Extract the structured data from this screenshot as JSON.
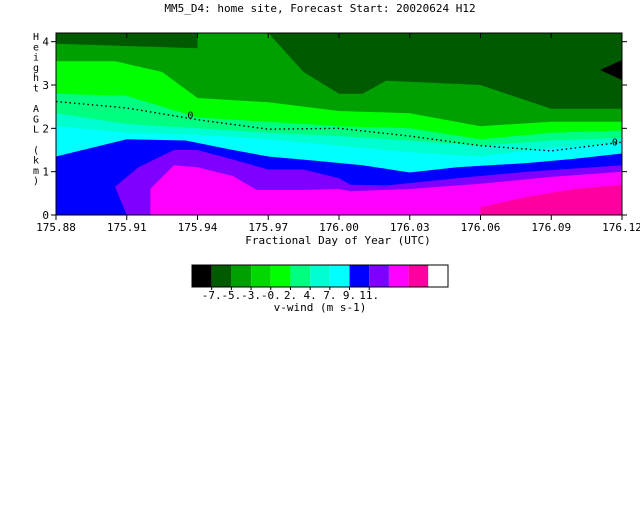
{
  "chart_data": {
    "type": "heatmap",
    "title": "MM5_D4: home site,  Forecast Start: 20020624 H12",
    "xlabel": "Fractional Day of Year (UTC)",
    "ylabel": "Height AGL (km)",
    "x_ticks": [
      "175.88",
      "175.91",
      "175.94",
      "175.97",
      "176.00",
      "176.03",
      "176.06",
      "176.09",
      "176.12"
    ],
    "x_range": [
      175.88,
      176.12
    ],
    "y_ticks": [
      "0",
      "1",
      "2",
      "3",
      "4"
    ],
    "y_range": [
      0,
      4.2
    ],
    "contour_label": "0",
    "colorbar": {
      "label": "v-wind (m s-1)",
      "ticks": [
        "-7.",
        "-5.",
        "-3.",
        "-0.",
        "2.",
        "4.",
        "7.",
        "9.",
        "11."
      ],
      "colors": [
        "#000000",
        "#005a00",
        "#00a000",
        "#00d800",
        "#00ff00",
        "#00ff80",
        "#00ffd0",
        "#00ffff",
        "#0000ff",
        "#8000ff",
        "#ff00ff",
        "#ff00a0",
        "#ffffff"
      ]
    },
    "regions": [
      {
        "color": "#005a00",
        "level_ms": -6,
        "boundary": [
          [
            175.88,
            0
          ],
          [
            176.12,
            0
          ],
          [
            176.12,
            4.2
          ],
          [
            175.88,
            4.2
          ]
        ]
      },
      {
        "color": "#00a000",
        "level_ms": -4,
        "boundary": [
          [
            175.88,
            0
          ],
          [
            176.12,
            0
          ],
          [
            176.12,
            2.45
          ],
          [
            176.09,
            2.45
          ],
          [
            176.06,
            3.0
          ],
          [
            176.02,
            3.1
          ],
          [
            176.01,
            2.8
          ],
          [
            176.0,
            2.8
          ],
          [
            175.985,
            3.3
          ],
          [
            175.97,
            4.2
          ],
          [
            175.94,
            4.2
          ],
          [
            175.94,
            3.85
          ],
          [
            175.91,
            3.9
          ],
          [
            175.88,
            3.95
          ]
        ]
      },
      {
        "color": "#00ff00",
        "level_ms": -2,
        "boundary": [
          [
            175.88,
            0
          ],
          [
            176.12,
            0
          ],
          [
            176.12,
            2.15
          ],
          [
            176.09,
            2.15
          ],
          [
            176.06,
            2.05
          ],
          [
            176.03,
            2.35
          ],
          [
            176.0,
            2.4
          ],
          [
            175.97,
            2.6
          ],
          [
            175.94,
            2.7
          ],
          [
            175.925,
            3.3
          ],
          [
            175.905,
            3.55
          ],
          [
            175.88,
            3.55
          ]
        ]
      },
      {
        "color": "#00ff80",
        "level_ms": 0,
        "boundary": [
          [
            175.88,
            0
          ],
          [
            176.12,
            0
          ],
          [
            176.12,
            1.95
          ],
          [
            176.09,
            1.9
          ],
          [
            176.06,
            1.75
          ],
          [
            176.03,
            2.0
          ],
          [
            176.0,
            2.05
          ],
          [
            175.97,
            2.15
          ],
          [
            175.94,
            2.25
          ],
          [
            175.91,
            2.75
          ],
          [
            175.88,
            2.8
          ]
        ]
      },
      {
        "color": "#00ffd0",
        "level_ms": 1,
        "boundary": [
          [
            175.88,
            0
          ],
          [
            176.12,
            0
          ],
          [
            176.12,
            1.78
          ],
          [
            176.09,
            1.72
          ],
          [
            176.06,
            1.6
          ],
          [
            176.03,
            1.72
          ],
          [
            176.0,
            1.82
          ],
          [
            175.97,
            1.9
          ],
          [
            175.94,
            2.0
          ],
          [
            175.91,
            2.1
          ],
          [
            175.88,
            2.35
          ]
        ]
      },
      {
        "color": "#00ffff",
        "level_ms": 2,
        "boundary": [
          [
            175.88,
            0
          ],
          [
            176.12,
            0
          ],
          [
            176.12,
            1.65
          ],
          [
            176.09,
            1.55
          ],
          [
            176.06,
            1.35
          ],
          [
            176.03,
            1.45
          ],
          [
            176.0,
            1.6
          ],
          [
            175.97,
            1.75
          ],
          [
            175.94,
            1.85
          ],
          [
            175.91,
            1.9
          ],
          [
            175.88,
            2.05
          ]
        ]
      },
      {
        "color": "#0000ff",
        "level_ms": 4,
        "boundary": [
          [
            175.88,
            0
          ],
          [
            176.12,
            0
          ],
          [
            176.12,
            1.42
          ],
          [
            176.1,
            1.3
          ],
          [
            176.08,
            1.2
          ],
          [
            176.05,
            1.1
          ],
          [
            176.03,
            0.98
          ],
          [
            176.01,
            1.15
          ],
          [
            175.99,
            1.25
          ],
          [
            175.97,
            1.35
          ],
          [
            175.955,
            1.5
          ],
          [
            175.935,
            1.72
          ],
          [
            175.91,
            1.75
          ],
          [
            175.88,
            1.35
          ]
        ]
      },
      {
        "color": "#8000ff",
        "level_ms": 6,
        "boundary": [
          [
            175.91,
            0
          ],
          [
            176.12,
            0
          ],
          [
            176.12,
            1.15
          ],
          [
            176.08,
            1.0
          ],
          [
            176.05,
            0.85
          ],
          [
            176.02,
            0.68
          ],
          [
            176.005,
            0.7
          ],
          [
            176.0,
            0.85
          ],
          [
            175.985,
            1.05
          ],
          [
            175.97,
            1.05
          ],
          [
            175.955,
            1.28
          ],
          [
            175.94,
            1.5
          ],
          [
            175.93,
            1.5
          ],
          [
            175.915,
            1.1
          ],
          [
            175.905,
            0.65
          ]
        ]
      },
      {
        "color": "#ff00ff",
        "level_ms": 8,
        "boundary": [
          [
            175.92,
            0
          ],
          [
            176.12,
            0
          ],
          [
            176.12,
            1.0
          ],
          [
            176.09,
            0.88
          ],
          [
            176.06,
            0.72
          ],
          [
            176.03,
            0.6
          ],
          [
            176.005,
            0.55
          ],
          [
            176.0,
            0.6
          ],
          [
            175.985,
            0.58
          ],
          [
            175.965,
            0.58
          ],
          [
            175.955,
            0.9
          ],
          [
            175.94,
            1.1
          ],
          [
            175.93,
            1.15
          ],
          [
            175.92,
            0.6
          ]
        ]
      },
      {
        "color": "#ff00a0",
        "level_ms": 10,
        "boundary": [
          [
            176.06,
            0
          ],
          [
            176.12,
            0
          ],
          [
            176.12,
            0.7
          ],
          [
            176.1,
            0.6
          ],
          [
            176.08,
            0.42
          ],
          [
            176.06,
            0.18
          ]
        ]
      }
    ],
    "zero_contour": [
      [
        175.88,
        2.62
      ],
      [
        175.91,
        2.47
      ],
      [
        175.94,
        2.2
      ],
      [
        175.97,
        1.98
      ],
      [
        176.0,
        2.0
      ],
      [
        176.03,
        1.82
      ],
      [
        176.06,
        1.6
      ],
      [
        176.09,
        1.48
      ],
      [
        176.12,
        1.68
      ]
    ],
    "zero_contour_label_at": [
      175.937,
      2.3
    ],
    "zero_contour_label_at_2": [
      176.117,
      1.67
    ]
  }
}
